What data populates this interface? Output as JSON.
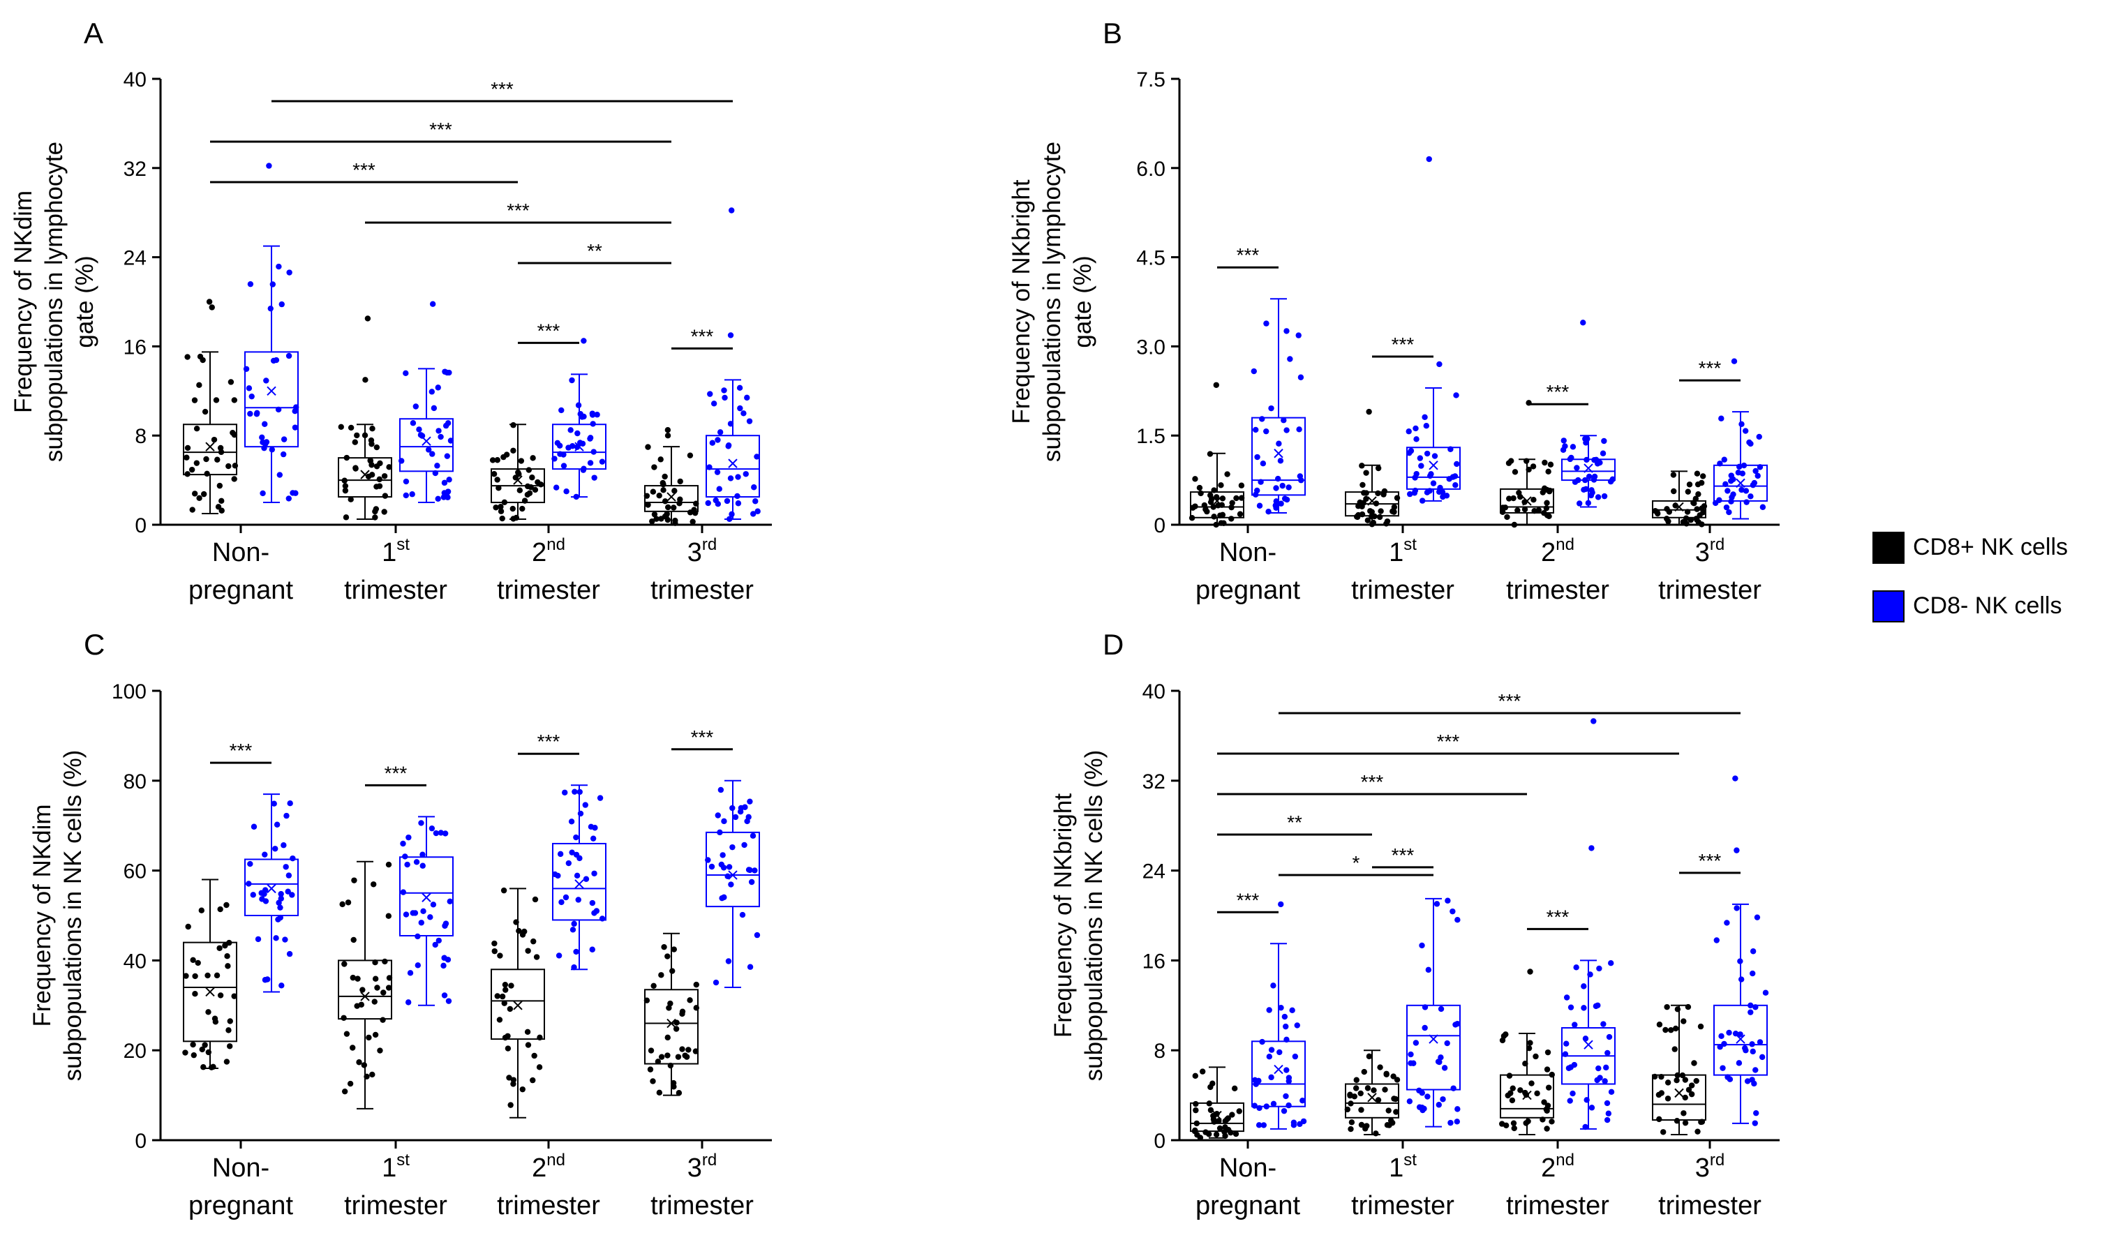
{
  "colors": {
    "cd8_pos": "#000000",
    "cd8_neg": "#0000ff"
  },
  "legend": [
    {
      "label": "CD8+ NK cells",
      "color": "#000000"
    },
    {
      "label": "CD8- NK cells",
      "color": "#0000ff"
    }
  ],
  "chart_data": [
    {
      "panel": "A",
      "type": "box",
      "ylabel_lines": [
        "Frequency of NKdim",
        "subpopulations in lymphocyte",
        "gate (%)"
      ],
      "ylim": [
        0,
        40
      ],
      "yticks": [
        "0",
        "8",
        "16",
        "24",
        "32",
        "40"
      ],
      "categories": [
        {
          "label": "Non-",
          "label_line2": "pregnant",
          "sup": ""
        },
        {
          "label": "1",
          "label_line2": "trimester",
          "sup": "st"
        },
        {
          "label": "2",
          "label_line2": "trimester",
          "sup": "nd"
        },
        {
          "label": "3",
          "label_line2": "trimester",
          "sup": "rd"
        }
      ],
      "series": [
        {
          "name": "CD8+ NK cells",
          "boxes": [
            {
              "min": 1,
              "q1": 4.5,
              "median": 6.5,
              "q3": 9,
              "max": 15.5,
              "mean": 7,
              "outliers": [
                19.5,
                20
              ]
            },
            {
              "min": 0.5,
              "q1": 2.5,
              "median": 4,
              "q3": 6,
              "max": 9,
              "mean": 4.5,
              "outliers": [
                13,
                18.5
              ]
            },
            {
              "min": 0.5,
              "q1": 2,
              "median": 3.5,
              "q3": 5,
              "max": 9,
              "mean": 4,
              "outliers": []
            },
            {
              "min": 0,
              "q1": 1.2,
              "median": 2,
              "q3": 3.5,
              "max": 7,
              "mean": 2.5,
              "outliers": [
                8,
                8.5
              ]
            }
          ]
        },
        {
          "name": "CD8- NK cells",
          "boxes": [
            {
              "min": 2,
              "q1": 7,
              "median": 10.5,
              "q3": 15.5,
              "max": 25,
              "mean": 12,
              "outliers": [
                32.2
              ]
            },
            {
              "min": 2,
              "q1": 4.8,
              "median": 7,
              "q3": 9.5,
              "max": 14,
              "mean": 7.5,
              "outliers": [
                19.8
              ]
            },
            {
              "min": 2.5,
              "q1": 5,
              "median": 6.5,
              "q3": 9,
              "max": 13.5,
              "mean": 7,
              "outliers": [
                16.5
              ]
            },
            {
              "min": 0.5,
              "q1": 2.5,
              "median": 5,
              "q3": 8,
              "max": 13,
              "mean": 5.5,
              "outliers": [
                17,
                28.2
              ]
            }
          ]
        }
      ],
      "significance": [
        {
          "from": {
            "group": 0,
            "series": 1
          },
          "to": {
            "group": 3,
            "series": 1
          },
          "label": "***"
        },
        {
          "from": {
            "group": 0,
            "series": 0
          },
          "to": {
            "group": 3,
            "series": 0
          },
          "label": "***"
        },
        {
          "from": {
            "group": 0,
            "series": 0
          },
          "to": {
            "group": 2,
            "series": 0
          },
          "label": "***"
        },
        {
          "from": {
            "group": 1,
            "series": 0
          },
          "to": {
            "group": 3,
            "series": 0
          },
          "label": "***"
        },
        {
          "from": {
            "group": 2,
            "series": 0
          },
          "to": {
            "group": 3,
            "series": 0
          },
          "label": "**"
        },
        {
          "from": {
            "group": 2,
            "series": 0
          },
          "to": {
            "group": 2,
            "series": 1
          },
          "label": "***"
        },
        {
          "from": {
            "group": 3,
            "series": 0
          },
          "to": {
            "group": 3,
            "series": 1
          },
          "label": "***"
        }
      ]
    },
    {
      "panel": "B",
      "type": "box",
      "ylabel_lines": [
        "Frequency of NKbright",
        "subpopulations in lymphocyte",
        "gate (%)"
      ],
      "ylim": [
        0,
        7.5
      ],
      "yticks": [
        "0",
        "1.5",
        "3.0",
        "4.5",
        "6.0",
        "7.5"
      ],
      "categories": [
        {
          "label": "Non-",
          "label_line2": "pregnant",
          "sup": ""
        },
        {
          "label": "1",
          "label_line2": "trimester",
          "sup": "st"
        },
        {
          "label": "2",
          "label_line2": "trimester",
          "sup": "nd"
        },
        {
          "label": "3",
          "label_line2": "trimester",
          "sup": "rd"
        }
      ],
      "series": [
        {
          "name": "CD8+ NK cells",
          "boxes": [
            {
              "min": 0,
              "q1": 0.12,
              "median": 0.3,
              "q3": 0.55,
              "max": 1.2,
              "mean": 0.4,
              "outliers": [
                2.35
              ]
            },
            {
              "min": 0,
              "q1": 0.15,
              "median": 0.35,
              "q3": 0.55,
              "max": 1.0,
              "mean": 0.4,
              "outliers": [
                1.9
              ]
            },
            {
              "min": 0,
              "q1": 0.2,
              "median": 0.3,
              "q3": 0.6,
              "max": 1.1,
              "mean": 0.4,
              "outliers": [
                2.05
              ]
            },
            {
              "min": 0,
              "q1": 0.12,
              "median": 0.25,
              "q3": 0.4,
              "max": 0.9,
              "mean": 0.3,
              "outliers": []
            }
          ]
        },
        {
          "name": "CD8- NK cells",
          "boxes": [
            {
              "min": 0.2,
              "q1": 0.5,
              "median": 0.75,
              "q3": 1.8,
              "max": 3.8,
              "mean": 1.2,
              "outliers": []
            },
            {
              "min": 0.4,
              "q1": 0.6,
              "median": 0.8,
              "q3": 1.3,
              "max": 2.3,
              "mean": 1.0,
              "outliers": [
                2.7,
                6.15
              ]
            },
            {
              "min": 0.3,
              "q1": 0.75,
              "median": 0.9,
              "q3": 1.1,
              "max": 1.5,
              "mean": 0.95,
              "outliers": [
                3.4
              ]
            },
            {
              "min": 0.1,
              "q1": 0.4,
              "median": 0.65,
              "q3": 1.0,
              "max": 1.9,
              "mean": 0.7,
              "outliers": [
                2.75
              ]
            }
          ]
        }
      ],
      "significance": [
        {
          "from": {
            "group": 0,
            "series": 0
          },
          "to": {
            "group": 0,
            "series": 1
          },
          "label": "***"
        },
        {
          "from": {
            "group": 1,
            "series": 0
          },
          "to": {
            "group": 1,
            "series": 1
          },
          "label": "***"
        },
        {
          "from": {
            "group": 2,
            "series": 0
          },
          "to": {
            "group": 2,
            "series": 1
          },
          "label": "***"
        },
        {
          "from": {
            "group": 3,
            "series": 0
          },
          "to": {
            "group": 3,
            "series": 1
          },
          "label": "***"
        }
      ]
    },
    {
      "panel": "C",
      "type": "box",
      "ylabel_lines": [
        "Frequency of NKdim",
        "subpopulations in NK cells (%)"
      ],
      "ylim": [
        0,
        100
      ],
      "yticks": [
        "0",
        "20",
        "40",
        "60",
        "80",
        "100"
      ],
      "categories": [
        {
          "label": "Non-",
          "label_line2": "pregnant",
          "sup": ""
        },
        {
          "label": "1",
          "label_line2": "trimester",
          "sup": "st"
        },
        {
          "label": "2",
          "label_line2": "trimester",
          "sup": "nd"
        },
        {
          "label": "3",
          "label_line2": "trimester",
          "sup": "rd"
        }
      ],
      "series": [
        {
          "name": "CD8+ NK cells",
          "boxes": [
            {
              "min": 16,
              "q1": 22,
              "median": 34,
              "q3": 44,
              "max": 58,
              "mean": 33,
              "outliers": []
            },
            {
              "min": 7,
              "q1": 27,
              "median": 32,
              "q3": 40,
              "max": 62,
              "mean": 32,
              "outliers": []
            },
            {
              "min": 5,
              "q1": 22.5,
              "median": 31,
              "q3": 38,
              "max": 56,
              "mean": 30,
              "outliers": []
            },
            {
              "min": 10,
              "q1": 17,
              "median": 26,
              "q3": 33.5,
              "max": 46,
              "mean": 26,
              "outliers": []
            }
          ]
        },
        {
          "name": "CD8- NK cells",
          "boxes": [
            {
              "min": 33,
              "q1": 50,
              "median": 57,
              "q3": 62.5,
              "max": 77,
              "mean": 56,
              "outliers": []
            },
            {
              "min": 30,
              "q1": 45.5,
              "median": 55,
              "q3": 63,
              "max": 72,
              "mean": 54,
              "outliers": []
            },
            {
              "min": 38,
              "q1": 49,
              "median": 56,
              "q3": 66,
              "max": 79,
              "mean": 57,
              "outliers": []
            },
            {
              "min": 34,
              "q1": 52,
              "median": 59,
              "q3": 68.5,
              "max": 80,
              "mean": 59,
              "outliers": []
            }
          ]
        }
      ],
      "significance": [
        {
          "from": {
            "group": 0,
            "series": 0
          },
          "to": {
            "group": 0,
            "series": 1
          },
          "label": "***"
        },
        {
          "from": {
            "group": 1,
            "series": 0
          },
          "to": {
            "group": 1,
            "series": 1
          },
          "label": "***"
        },
        {
          "from": {
            "group": 2,
            "series": 0
          },
          "to": {
            "group": 2,
            "series": 1
          },
          "label": "***"
        },
        {
          "from": {
            "group": 3,
            "series": 0
          },
          "to": {
            "group": 3,
            "series": 1
          },
          "label": "***"
        }
      ]
    },
    {
      "panel": "D",
      "type": "box",
      "ylabel_lines": [
        "Frequency of NKbright",
        "subpopulations in NK cells (%)"
      ],
      "ylim": [
        0,
        40
      ],
      "yticks": [
        "0",
        "8",
        "16",
        "24",
        "32",
        "40"
      ],
      "categories": [
        {
          "label": "Non-",
          "label_line2": "pregnant",
          "sup": ""
        },
        {
          "label": "1",
          "label_line2": "trimester",
          "sup": "st"
        },
        {
          "label": "2",
          "label_line2": "trimester",
          "sup": "nd"
        },
        {
          "label": "3",
          "label_line2": "trimester",
          "sup": "rd"
        }
      ],
      "series": [
        {
          "name": "CD8+ NK cells",
          "boxes": [
            {
              "min": 0.2,
              "q1": 0.8,
              "median": 1.5,
              "q3": 3.3,
              "max": 6.5,
              "mean": 2.2,
              "outliers": []
            },
            {
              "min": 0.5,
              "q1": 2,
              "median": 3.3,
              "q3": 5,
              "max": 8,
              "mean": 3.8,
              "outliers": []
            },
            {
              "min": 0.5,
              "q1": 2,
              "median": 2.8,
              "q3": 5.8,
              "max": 9.5,
              "mean": 4,
              "outliers": [
                15
              ]
            },
            {
              "min": 0.5,
              "q1": 1.8,
              "median": 3.2,
              "q3": 5.8,
              "max": 12,
              "mean": 4.2,
              "outliers": []
            }
          ]
        },
        {
          "name": "CD8- NK cells",
          "boxes": [
            {
              "min": 1,
              "q1": 3,
              "median": 5,
              "q3": 8.8,
              "max": 17.5,
              "mean": 6.3,
              "outliers": [
                21
              ]
            },
            {
              "min": 1.2,
              "q1": 4.5,
              "median": 9.3,
              "q3": 12,
              "max": 21.5,
              "mean": 9,
              "outliers": []
            },
            {
              "min": 1,
              "q1": 5,
              "median": 7.5,
              "q3": 10,
              "max": 16,
              "mean": 8.5,
              "outliers": [
                26,
                37.3
              ]
            },
            {
              "min": 1.5,
              "q1": 5.8,
              "median": 8.5,
              "q3": 12,
              "max": 21,
              "mean": 9,
              "outliers": [
                25.8,
                32.2
              ]
            }
          ]
        }
      ],
      "significance": [
        {
          "from": {
            "group": 0,
            "series": 1
          },
          "to": {
            "group": 3,
            "series": 1
          },
          "label": "***"
        },
        {
          "from": {
            "group": 0,
            "series": 0
          },
          "to": {
            "group": 3,
            "series": 0
          },
          "label": "***"
        },
        {
          "from": {
            "group": 0,
            "series": 0
          },
          "to": {
            "group": 2,
            "series": 0
          },
          "label": "***"
        },
        {
          "from": {
            "group": 0,
            "series": 0
          },
          "to": {
            "group": 1,
            "series": 0
          },
          "label": "**"
        },
        {
          "from": {
            "group": 0,
            "series": 1
          },
          "to": {
            "group": 1,
            "series": 1
          },
          "label": "*"
        },
        {
          "from": {
            "group": 0,
            "series": 0
          },
          "to": {
            "group": 0,
            "series": 1
          },
          "label": "***"
        },
        {
          "from": {
            "group": 1,
            "series": 0
          },
          "to": {
            "group": 1,
            "series": 1
          },
          "label": "***"
        },
        {
          "from": {
            "group": 2,
            "series": 0
          },
          "to": {
            "group": 2,
            "series": 1
          },
          "label": "***"
        },
        {
          "from": {
            "group": 3,
            "series": 0
          },
          "to": {
            "group": 3,
            "series": 1
          },
          "label": "***"
        }
      ]
    }
  ]
}
